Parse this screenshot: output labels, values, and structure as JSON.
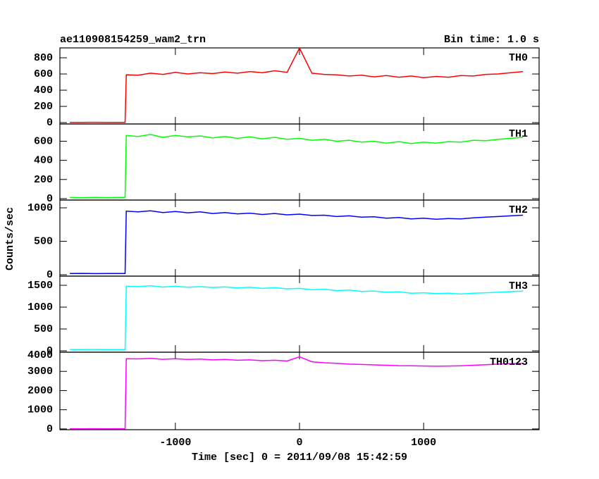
{
  "chart_data": [
    {
      "type": "line",
      "title": "ae110908154259_wam2_trn",
      "subtitle": "Bin time: 1.0 s",
      "x": [
        -1850,
        -1750,
        -1650,
        -1550,
        -1450,
        -1405,
        -1395,
        -1300,
        -1200,
        -1100,
        -1000,
        -900,
        -800,
        -700,
        -600,
        -500,
        -400,
        -300,
        -200,
        -100,
        0,
        100,
        200,
        300,
        400,
        500,
        600,
        700,
        800,
        900,
        1000,
        1100,
        1200,
        1300,
        1400,
        1500,
        1600,
        1700,
        1800
      ],
      "series": [
        {
          "name": "TH0",
          "color": "#ff0000",
          "values": [
            3,
            2,
            4,
            3,
            3,
            3,
            590,
            585,
            610,
            595,
            620,
            600,
            615,
            605,
            625,
            610,
            630,
            615,
            640,
            620,
            920,
            610,
            595,
            590,
            575,
            585,
            565,
            580,
            560,
            575,
            555,
            570,
            560,
            580,
            575,
            595,
            600,
            615,
            630
          ]
        }
      ],
      "xlim": [
        -1930,
        1930
      ],
      "ylim": [
        -17,
        922
      ],
      "yticks": [
        0,
        200,
        400,
        600,
        800
      ]
    },
    {
      "type": "line",
      "x": [
        -1850,
        -1750,
        -1650,
        -1550,
        -1450,
        -1405,
        -1395,
        -1300,
        -1200,
        -1100,
        -1000,
        -900,
        -800,
        -700,
        -600,
        -500,
        -400,
        -300,
        -200,
        -100,
        0,
        100,
        200,
        300,
        400,
        500,
        600,
        700,
        800,
        900,
        1000,
        1100,
        1200,
        1300,
        1400,
        1500,
        1600,
        1700,
        1800
      ],
      "series": [
        {
          "name": "TH1",
          "color": "#00ff00",
          "values": [
            12,
            10,
            13,
            11,
            12,
            12,
            660,
            650,
            670,
            640,
            660,
            645,
            655,
            635,
            650,
            630,
            645,
            625,
            640,
            620,
            630,
            610,
            620,
            600,
            610,
            590,
            600,
            580,
            595,
            575,
            590,
            580,
            595,
            590,
            610,
            605,
            620,
            630,
            640
          ]
        }
      ],
      "xlim": [
        -1930,
        1930
      ],
      "ylim": [
        -15,
        780
      ],
      "yticks": [
        0,
        200,
        400,
        600
      ]
    },
    {
      "type": "line",
      "ylabel": "Counts/sec",
      "x": [
        -1850,
        -1750,
        -1650,
        -1550,
        -1450,
        -1405,
        -1395,
        -1300,
        -1200,
        -1100,
        -1000,
        -900,
        -800,
        -700,
        -600,
        -500,
        -400,
        -300,
        -200,
        -100,
        0,
        100,
        200,
        300,
        400,
        500,
        600,
        700,
        800,
        900,
        1000,
        1100,
        1200,
        1300,
        1400,
        1500,
        1600,
        1700,
        1800
      ],
      "series": [
        {
          "name": "TH2",
          "color": "#0000ff",
          "values": [
            18,
            20,
            17,
            19,
            18,
            18,
            950,
            940,
            955,
            930,
            945,
            925,
            940,
            915,
            930,
            910,
            920,
            900,
            915,
            895,
            905,
            885,
            890,
            870,
            880,
            860,
            865,
            845,
            855,
            835,
            845,
            830,
            840,
            835,
            850,
            860,
            870,
            880,
            890
          ]
        }
      ],
      "xlim": [
        -1930,
        1930
      ],
      "ylim": [
        -21,
        1116
      ],
      "yticks": [
        0,
        500,
        1000
      ]
    },
    {
      "type": "line",
      "x": [
        -1850,
        -1750,
        -1650,
        -1550,
        -1450,
        -1405,
        -1395,
        -1300,
        -1200,
        -1100,
        -1000,
        -900,
        -800,
        -700,
        -600,
        -500,
        -400,
        -300,
        -200,
        -100,
        0,
        100,
        200,
        300,
        400,
        500,
        600,
        700,
        800,
        900,
        1000,
        1100,
        1200,
        1300,
        1400,
        1500,
        1600,
        1700,
        1800
      ],
      "series": [
        {
          "name": "TH3",
          "color": "#00ffff",
          "values": [
            30,
            28,
            31,
            29,
            30,
            30,
            1480,
            1470,
            1490,
            1460,
            1480,
            1455,
            1470,
            1450,
            1465,
            1440,
            1455,
            1430,
            1445,
            1420,
            1430,
            1400,
            1410,
            1380,
            1390,
            1360,
            1370,
            1340,
            1350,
            1320,
            1330,
            1310,
            1320,
            1300,
            1320,
            1330,
            1340,
            1355,
            1370
          ]
        }
      ],
      "xlim": [
        -1930,
        1930
      ],
      "ylim": [
        -32,
        1710
      ],
      "yticks": [
        0,
        500,
        1000,
        1500
      ]
    },
    {
      "type": "line",
      "xlabel": "Time [sec] 0 = 2011/09/08 15:42:59",
      "x": [
        -1850,
        -1750,
        -1650,
        -1550,
        -1450,
        -1405,
        -1395,
        -1300,
        -1200,
        -1100,
        -1000,
        -900,
        -800,
        -700,
        -600,
        -500,
        -400,
        -300,
        -200,
        -100,
        0,
        100,
        200,
        300,
        400,
        500,
        600,
        700,
        800,
        900,
        1000,
        1100,
        1200,
        1300,
        1400,
        1500,
        1600,
        1700,
        1800
      ],
      "series": [
        {
          "name": "TH0123",
          "color": "#ff00ff",
          "values": [
            10,
            8,
            11,
            9,
            10,
            10,
            3660,
            3650,
            3680,
            3630,
            3660,
            3620,
            3640,
            3600,
            3620,
            3580,
            3600,
            3560,
            3580,
            3540,
            3760,
            3500,
            3450,
            3420,
            3380,
            3360,
            3340,
            3320,
            3300,
            3290,
            3280,
            3270,
            3280,
            3290,
            3320,
            3350,
            3380,
            3400,
            3420
          ]
        }
      ],
      "xlim": [
        -1930,
        1930
      ],
      "ylim": [
        -40,
        4000
      ],
      "yticks": [
        0,
        1000,
        2000,
        3000,
        4000
      ],
      "xticks": [
        -1000,
        0,
        1000
      ]
    }
  ]
}
